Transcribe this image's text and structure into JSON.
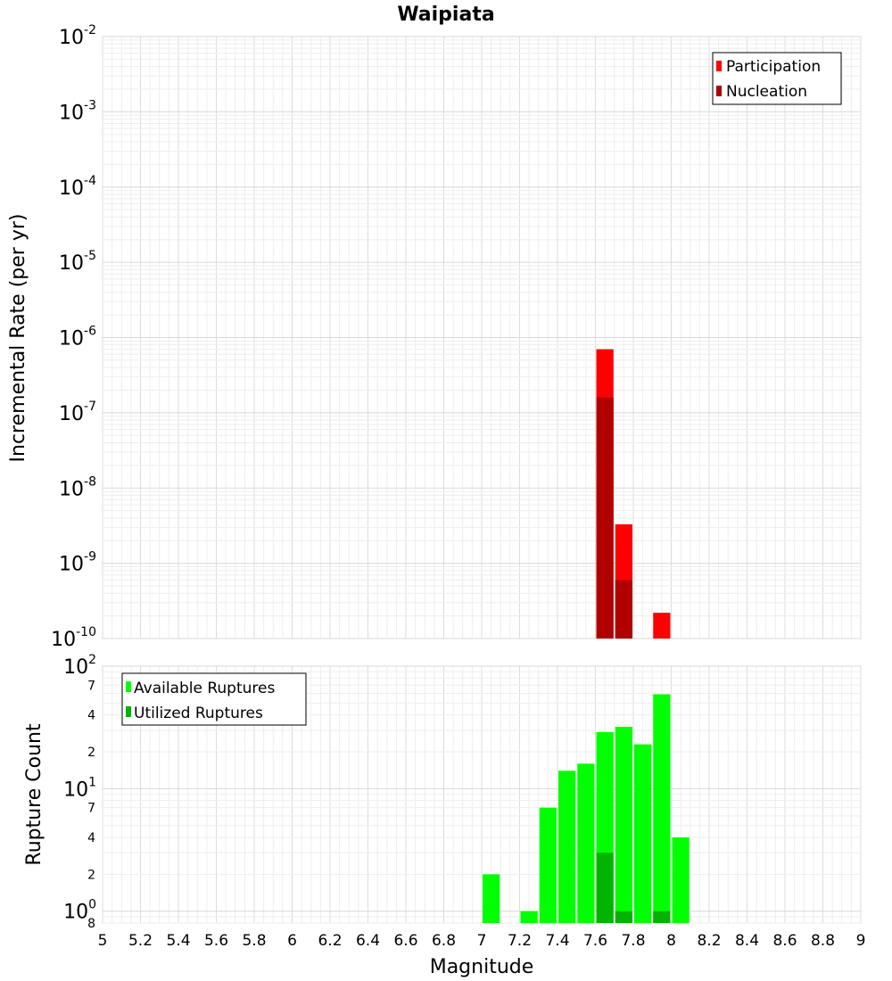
{
  "chart_data": [
    {
      "type": "bar",
      "title": "Waipiata",
      "xlabel": "",
      "ylabel": "Incremental Rate (per yr)",
      "yscale": "log",
      "ylim": [
        1e-10,
        0.01
      ],
      "xlim": [
        5,
        9
      ],
      "bin_width": 0.1,
      "y_tick_labels": [
        {
          "base": "10",
          "exp": "-10"
        },
        {
          "base": "10",
          "exp": "-9"
        },
        {
          "base": "10",
          "exp": "-8"
        },
        {
          "base": "10",
          "exp": "-7"
        },
        {
          "base": "10",
          "exp": "-6"
        },
        {
          "base": "10",
          "exp": "-5"
        },
        {
          "base": "10",
          "exp": "-4"
        },
        {
          "base": "10",
          "exp": "-3"
        },
        {
          "base": "10",
          "exp": "-2"
        }
      ],
      "legend_position": "top-right",
      "series": [
        {
          "name": "Participation",
          "color": "#ff0000",
          "points": [
            {
              "x": 7.65,
              "y": 7e-07
            },
            {
              "x": 7.75,
              "y": 3.3e-09
            },
            {
              "x": 7.95,
              "y": 2.2e-10
            }
          ]
        },
        {
          "name": "Nucleation",
          "color": "#b00000",
          "points": [
            {
              "x": 7.65,
              "y": 1.6e-07
            },
            {
              "x": 7.75,
              "y": 6e-10
            }
          ]
        }
      ]
    },
    {
      "type": "bar",
      "title": "",
      "xlabel": "Magnitude",
      "ylabel": "Rupture Count",
      "yscale": "log",
      "ylim": [
        0.8,
        100
      ],
      "xlim": [
        5,
        9
      ],
      "bin_width": 0.1,
      "x_ticks": [
        "5",
        "5.2",
        "5.4",
        "5.6",
        "5.8",
        "6",
        "6.2",
        "6.4",
        "6.6",
        "6.8",
        "7",
        "7.2",
        "7.4",
        "7.6",
        "7.8",
        "8",
        "8.2",
        "8.4",
        "8.6",
        "8.8",
        "9"
      ],
      "y_tick_labels": [
        {
          "base": "10",
          "exp": "0"
        },
        {
          "base": "10",
          "exp": "1"
        },
        {
          "base": "10",
          "exp": "2"
        }
      ],
      "y_minor_labels": [
        {
          "label": "8",
          "value": 0.8
        },
        {
          "label": "2",
          "value": 2
        },
        {
          "label": "4",
          "value": 4
        },
        {
          "label": "7",
          "value": 7
        },
        {
          "label": "2",
          "value": 20
        },
        {
          "label": "4",
          "value": 40
        },
        {
          "label": "7",
          "value": 70
        }
      ],
      "legend_position": "top-left",
      "series": [
        {
          "name": "Available Ruptures",
          "color": "#00ff00",
          "points": [
            {
              "x": 7.05,
              "y": 2
            },
            {
              "x": 7.25,
              "y": 1
            },
            {
              "x": 7.35,
              "y": 7
            },
            {
              "x": 7.45,
              "y": 14
            },
            {
              "x": 7.55,
              "y": 16
            },
            {
              "x": 7.65,
              "y": 29
            },
            {
              "x": 7.75,
              "y": 32
            },
            {
              "x": 7.85,
              "y": 23
            },
            {
              "x": 7.95,
              "y": 59
            },
            {
              "x": 8.05,
              "y": 4
            }
          ]
        },
        {
          "name": "Utilized Ruptures",
          "color": "#00b400",
          "points": [
            {
              "x": 7.65,
              "y": 3
            },
            {
              "x": 7.75,
              "y": 1
            },
            {
              "x": 7.95,
              "y": 1
            }
          ]
        }
      ]
    }
  ]
}
